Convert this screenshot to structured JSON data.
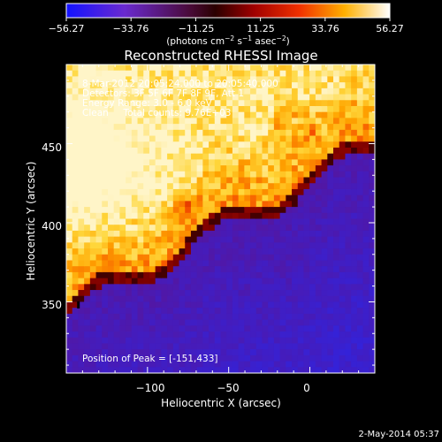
{
  "colorbar": {
    "ticks": [
      "−56.27",
      "−33.76",
      "−11.25",
      "11.25",
      "33.76",
      "56.27"
    ],
    "unit_label_parts": [
      "(photons cm",
      "−2",
      " s",
      "−1",
      " asec",
      "−2",
      ")"
    ],
    "range": [
      -56.27,
      56.27
    ]
  },
  "footer": {
    "timestamp": "2-May-2014 05:37"
  },
  "chart_data": {
    "type": "heatmap",
    "title": "Reconstructed RHESSI Image",
    "xlabel": "Heliocentric X (arcsec)",
    "ylabel": "Heliocentric Y (arcsec)",
    "xlim": [
      -150,
      40
    ],
    "ylim": [
      305,
      500
    ],
    "x_ticks": [
      -100,
      -50,
      0
    ],
    "x_tick_labels": [
      "−100",
      "−50",
      "0"
    ],
    "y_ticks": [
      350,
      400,
      450
    ],
    "y_tick_labels": [
      "350",
      "400",
      "450"
    ],
    "annotations": [
      "8-Mar-2012 20:05:24.000 to 20:05:40.000",
      "Detectors: 3F 5F 6F 7F 8F 9F, Att 1",
      "Energy Range: 3.0 - 6.0 keV",
      "Clean     Total counts: 9.76E+03"
    ],
    "peak_label": "Position of Peak = [-151,433]",
    "peak": [
      -151,
      433
    ],
    "colormap": "red-temperature (blue negative → black → red → yellow → white)",
    "grid": false
  }
}
